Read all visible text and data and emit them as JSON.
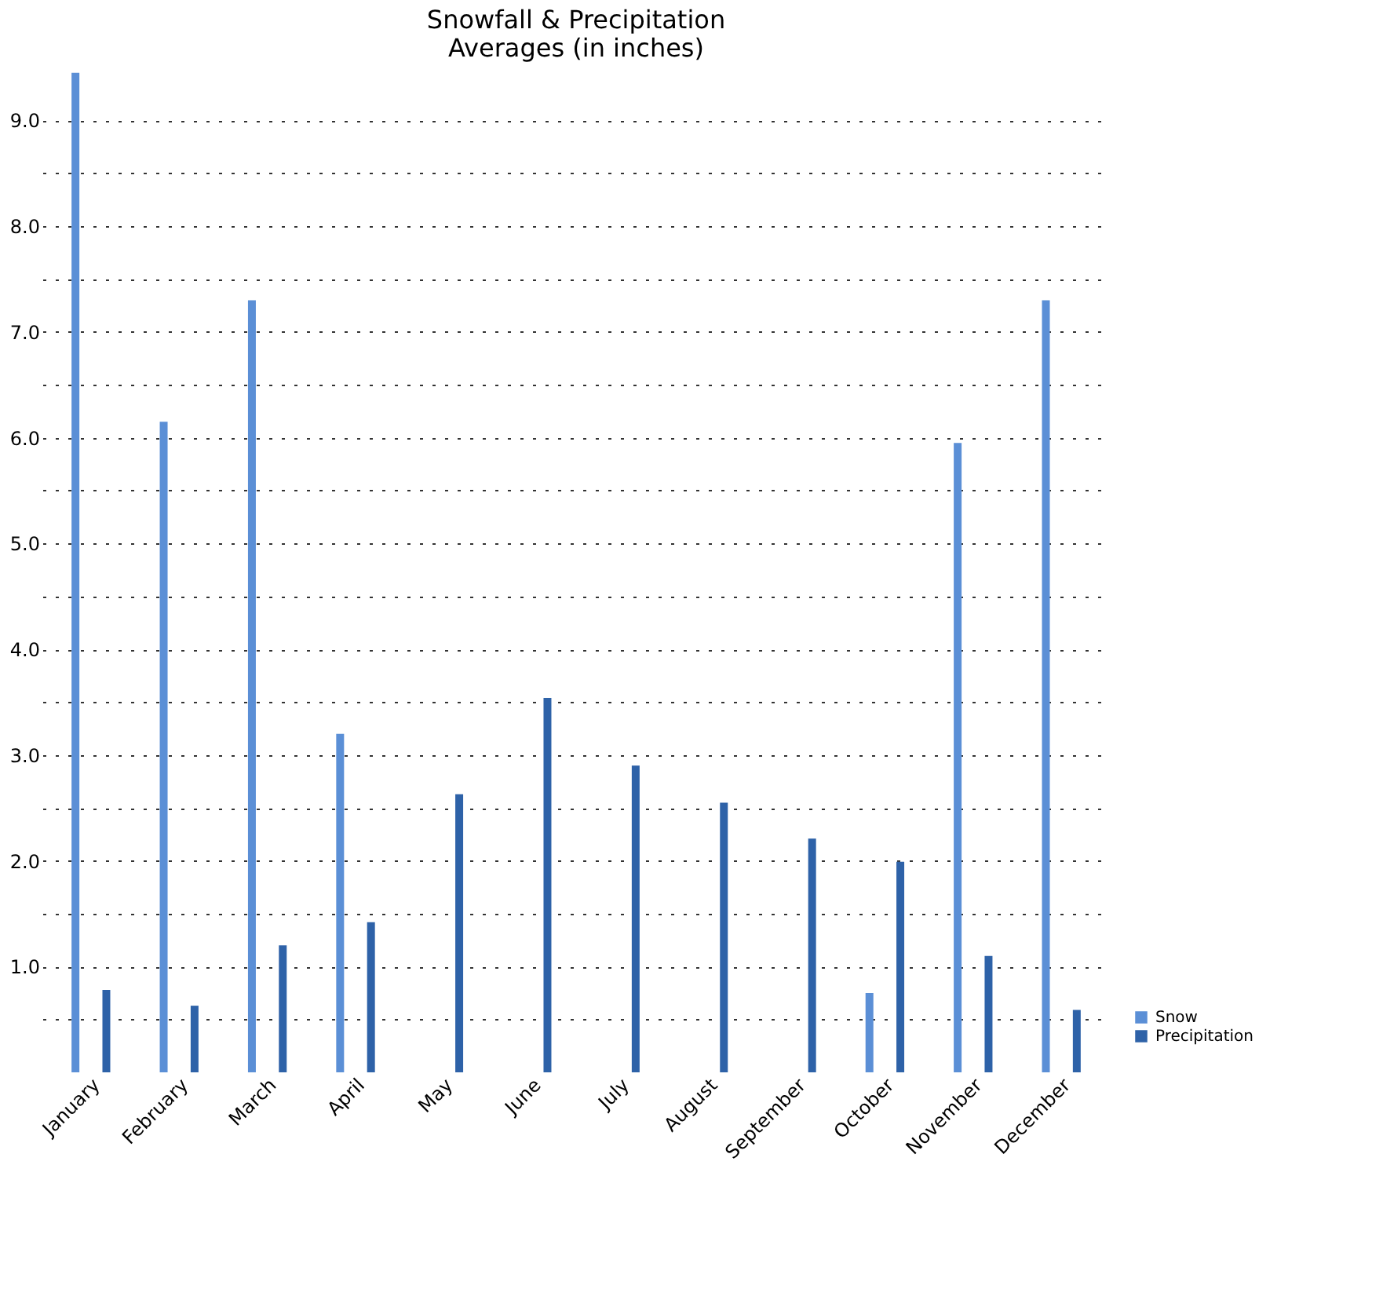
{
  "chart_data": {
    "type": "bar",
    "title": "Snowfall & Precipitation\nAverages (in inches)",
    "categories": [
      "January",
      "February",
      "March",
      "April",
      "May",
      "June",
      "July",
      "August",
      "September",
      "October",
      "November",
      "December"
    ],
    "series": [
      {
        "name": "Snow",
        "color": "#5b8fd6",
        "values": [
          9.45,
          6.15,
          7.3,
          3.2,
          null,
          null,
          null,
          null,
          null,
          0.75,
          5.95,
          7.3
        ]
      },
      {
        "name": "Precipitation",
        "color": "#2e62a8",
        "values": [
          0.78,
          0.63,
          1.2,
          1.42,
          2.63,
          3.54,
          2.9,
          2.55,
          2.21,
          1.99,
          1.1,
          0.59
        ]
      }
    ],
    "ylim": [
      0,
      9.5
    ],
    "yticks": [
      {
        "value": 0.5,
        "label": null
      },
      {
        "value": 1,
        "label": "1.0"
      },
      {
        "value": 1.5,
        "label": null
      },
      {
        "value": 2,
        "label": "2.0"
      },
      {
        "value": 2.5,
        "label": null
      },
      {
        "value": 3,
        "label": "3.0"
      },
      {
        "value": 3.5,
        "label": null
      },
      {
        "value": 4,
        "label": "4.0"
      },
      {
        "value": 4.5,
        "label": null
      },
      {
        "value": 5,
        "label": "5.0"
      },
      {
        "value": 5.5,
        "label": null
      },
      {
        "value": 6,
        "label": "6.0"
      },
      {
        "value": 6.5,
        "label": null
      },
      {
        "value": 7,
        "label": "7.0"
      },
      {
        "value": 7.5,
        "label": null
      },
      {
        "value": 8,
        "label": "8.0"
      },
      {
        "value": 8.5,
        "label": null
      },
      {
        "value": 9,
        "label": "9.0"
      }
    ],
    "grid": "y",
    "legend": "bottom right"
  }
}
